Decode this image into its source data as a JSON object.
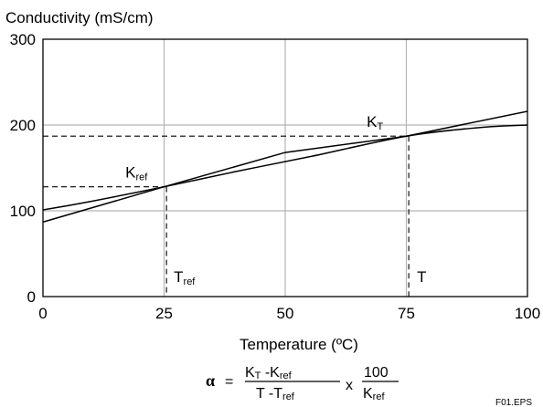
{
  "chart_data": {
    "type": "line",
    "ylabel": "Conductivity (mS/cm)",
    "xlabel": "Temperature (ºC)",
    "xlim": [
      0,
      100
    ],
    "ylim": [
      0,
      300
    ],
    "x_ticks": [
      "0",
      "25",
      "50",
      "75",
      "100"
    ],
    "y_ticks": [
      "0",
      "100",
      "200",
      "300"
    ],
    "x_tick_values": [
      0,
      25,
      50,
      75,
      100
    ],
    "y_tick_values": [
      0,
      100,
      200,
      300
    ],
    "grid": true,
    "series": [
      {
        "x": [
          -3,
          25,
          50,
          75,
          100
        ],
        "y": [
          82,
          128,
          168,
          187,
          216
        ]
      },
      {
        "x": [
          -3,
          0,
          10,
          25,
          40,
          55,
          75,
          90,
          100
        ],
        "y": [
          99,
          101,
          111,
          128,
          146,
          163,
          187,
          197,
          200
        ]
      }
    ],
    "reference_points": [
      {
        "x": 25.5,
        "y": 128,
        "label": "K",
        "label_sub": "ref",
        "xlabel": "T",
        "xlabel_sub": "ref"
      },
      {
        "x": 75.5,
        "y": 187,
        "label": "K",
        "label_sub": "T",
        "xlabel": "T",
        "xlabel_sub": ""
      }
    ]
  },
  "formula": {
    "alpha": "α",
    "equals": "=",
    "num1_a": "K",
    "num1_a_sub": "T",
    "num1_b": " -K",
    "num1_b_sub": "ref",
    "den1_a": "T -T",
    "den1_a_sub": "ref",
    "times": "x",
    "num2": "100",
    "den2": "K",
    "den2_sub": "ref"
  },
  "figure_id": "F01.EPS"
}
